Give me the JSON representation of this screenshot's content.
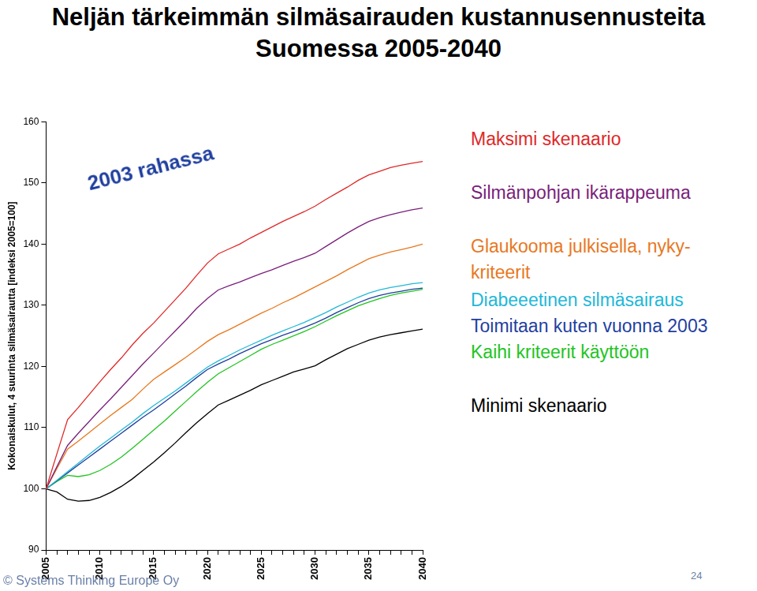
{
  "chart_data": {
    "type": "line",
    "title": [
      "Neljän tärkeimmän silmäsairauden kustannusennusteita",
      "Suomessa 2005-2040"
    ],
    "y_label": "Kokonaiskulut, 4 suurinta silmäsairautta [indeksi 2005=100]",
    "annotations": [
      "2003 rahassa"
    ],
    "categories": [
      "2005",
      null,
      null,
      null,
      null,
      "2010",
      null,
      null,
      null,
      null,
      "2015",
      null,
      null,
      null,
      null,
      "2020",
      null,
      null,
      null,
      null,
      "2025",
      null,
      null,
      null,
      null,
      "2030",
      null,
      null,
      null,
      null,
      "2035",
      null,
      null,
      null,
      null,
      "2040"
    ],
    "ylim": [
      90,
      160
    ],
    "yticks": [
      90,
      100,
      110,
      120,
      130,
      140,
      150,
      160
    ],
    "grid": false,
    "legend": "right",
    "series": [
      {
        "name": "Maksimi skenaario",
        "color": "#e02828",
        "values": [
          100,
          105.7,
          111.3,
          113.3,
          115.4,
          117.5,
          119.5,
          121.4,
          123.5,
          125.4,
          127.1,
          129,
          130.9,
          132.8,
          134.9,
          136.9,
          138.4,
          139.2,
          140,
          141,
          141.9,
          142.8,
          143.7,
          144.5,
          145.3,
          146.2,
          147.3,
          148.3,
          149.3,
          150.4,
          151.3,
          151.9,
          152.5,
          152.9,
          153.2,
          153.5
        ]
      },
      {
        "name": "Silmänpohjan ikärappeuma",
        "color": "#7a1f7a",
        "values": [
          100,
          103.6,
          107.1,
          109.1,
          111,
          112.9,
          114.7,
          116.6,
          118.5,
          120.4,
          122.2,
          124,
          125.8,
          127.6,
          129.5,
          131.1,
          132.5,
          133.2,
          133.8,
          134.5,
          135.2,
          135.8,
          136.5,
          137.2,
          137.8,
          138.5,
          139.6,
          140.7,
          141.8,
          142.8,
          143.7,
          144.3,
          144.8,
          145.2,
          145.6,
          145.9
        ]
      },
      {
        "name": "Glaukooma julkisella, nyky-kriteerit",
        "color": "#e8781e",
        "values": [
          100,
          103.3,
          106.5,
          107.8,
          109.2,
          110.6,
          112,
          113.3,
          114.6,
          116.3,
          117.9,
          119.1,
          120.3,
          121.5,
          122.8,
          124.1,
          125.2,
          126,
          126.9,
          127.8,
          128.7,
          129.5,
          130.4,
          131.2,
          132.1,
          133,
          133.9,
          134.8,
          135.8,
          136.7,
          137.6,
          138.2,
          138.7,
          139.1,
          139.5,
          140
        ]
      },
      {
        "name": "Diabeeetinen silmäsairaus",
        "color": "#22b8d8",
        "values": [
          100,
          101.4,
          102.8,
          104.2,
          105.6,
          107,
          108.3,
          109.6,
          110.9,
          112.3,
          113.6,
          114.8,
          116,
          117.3,
          118.6,
          119.9,
          120.9,
          121.8,
          122.7,
          123.5,
          124.3,
          125.1,
          125.8,
          126.5,
          127.2,
          128,
          128.8,
          129.7,
          130.5,
          131.3,
          132,
          132.5,
          132.9,
          133.2,
          133.5,
          133.7
        ]
      },
      {
        "name": "Toimitaan kuten vuonna 2003",
        "color": "#1f3f9f",
        "values": [
          100,
          101.3,
          102.6,
          103.9,
          105.2,
          106.5,
          107.8,
          109.1,
          110.4,
          111.7,
          112.9,
          114.2,
          115.5,
          116.8,
          118.2,
          119.5,
          120.4,
          121.2,
          122.1,
          122.9,
          123.7,
          124.4,
          125.1,
          125.7,
          126.4,
          127.1,
          127.9,
          128.8,
          129.6,
          130.4,
          131.1,
          131.6,
          132,
          132.3,
          132.6,
          132.8
        ]
      },
      {
        "name": "Kaihi kriteerit käyttöön",
        "color": "#22c422",
        "values": [
          100,
          101.2,
          102.2,
          102,
          102.3,
          103,
          104,
          105.2,
          106.6,
          108.1,
          109.6,
          111.1,
          112.7,
          114.3,
          115.9,
          117.4,
          118.8,
          119.8,
          120.8,
          121.8,
          122.8,
          123.6,
          124.3,
          125,
          125.7,
          126.5,
          127.4,
          128.3,
          129.1,
          129.9,
          130.5,
          131.1,
          131.6,
          132,
          132.3,
          132.6
        ]
      },
      {
        "name": "Minimi skenaario",
        "color": "#000000",
        "values": [
          100,
          99.5,
          98.3,
          98,
          98.1,
          98.6,
          99.4,
          100.4,
          101.6,
          103,
          104.4,
          105.9,
          107.5,
          109.2,
          110.8,
          112.3,
          113.7,
          114.5,
          115.3,
          116.1,
          117,
          117.7,
          118.4,
          119.1,
          119.6,
          120.1,
          121.1,
          122,
          122.9,
          123.6,
          124.3,
          124.8,
          125.2,
          125.5,
          125.8,
          126.1
        ]
      }
    ]
  },
  "footer": {
    "copyright": "© Systems Thinking Europe Oy",
    "page": "24"
  }
}
